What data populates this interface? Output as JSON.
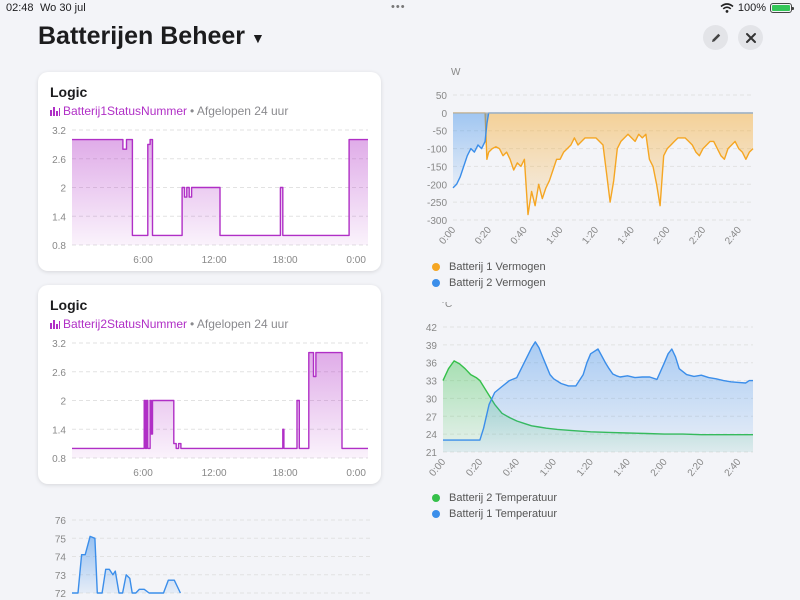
{
  "status_bar": {
    "time": "02:48",
    "date": "Wo 30 jul",
    "battery": "100%",
    "battery_level": 1.0
  },
  "header": {
    "title": "Batterijen Beheer",
    "edit_icon": "pencil-icon",
    "close_icon": "close-icon"
  },
  "colors": {
    "purple": "#b02fc6",
    "orange": "#f5a623",
    "blue": "#3b8eea",
    "green": "#35c04a"
  },
  "cards": [
    {
      "title": "Logic",
      "entity": "Batterij1StatusNummer",
      "period": "• Afgelopen 24 uur"
    },
    {
      "title": "Logic",
      "entity": "Batterij2StatusNummer",
      "period": "• Afgelopen 24 uur"
    }
  ],
  "chart_data": [
    {
      "type": "line",
      "title": "",
      "ylim": [
        0.8,
        3.2
      ],
      "y_ticks": [
        "3.2",
        "2.6",
        "2",
        "1.4",
        "0.8"
      ],
      "x_tick_labels": [
        "6:00",
        "12:00",
        "18:00",
        "0:00"
      ],
      "series": [
        {
          "x": [
            0,
            4.2,
            4.3,
            4.5,
            4.6,
            5.0,
            5.1,
            5.3,
            6.2,
            6.4,
            6.6,
            6.8,
            7.0,
            7.2,
            9.1,
            9.3,
            9.5,
            9.7,
            9.9,
            10.1,
            12.3,
            12.5,
            12.7,
            13.0,
            13.3,
            13.6,
            17.5,
            17.6,
            17.7,
            17.8,
            17.9,
            23.2,
            23.4,
            25
          ],
          "y": [
            3.0,
            3.0,
            2.8,
            2.8,
            3.0,
            3.0,
            1.0,
            1.0,
            1.0,
            2.9,
            3.0,
            1.0,
            1.0,
            1.0,
            1.0,
            2.0,
            1.8,
            2.0,
            1.8,
            2.0,
            2.0,
            1.0,
            1.0,
            1.0,
            1.0,
            1.0,
            1.0,
            2.0,
            2.0,
            1.0,
            1.0,
            1.0,
            3.0,
            3.0
          ]
        }
      ]
    },
    {
      "type": "line",
      "title": "",
      "ylim": [
        0.8,
        3.2
      ],
      "y_ticks": [
        "3.2",
        "2.6",
        "2",
        "1.4",
        "0.8"
      ],
      "x_tick_labels": [
        "6:00",
        "12:00",
        "18:00",
        "0:00"
      ],
      "series": [
        {
          "x": [
            0,
            6.0,
            6.1,
            6.2,
            6.3,
            6.4,
            6.6,
            6.7,
            6.8,
            6.9,
            7.0,
            7.1,
            8.4,
            8.6,
            8.8,
            9.0,
            9.2,
            17.7,
            17.8,
            17.9,
            18.0,
            18.1,
            18.9,
            19.0,
            19.2,
            20.0,
            20.4,
            20.6,
            22.6,
            22.8,
            25
          ],
          "y": [
            1.0,
            1.0,
            2.0,
            1.0,
            2.0,
            1.0,
            2.0,
            1.3,
            2.0,
            2.0,
            2.0,
            2.0,
            2.0,
            1.1,
            1.0,
            1.1,
            1.0,
            1.0,
            1.4,
            1.0,
            1.0,
            1.0,
            1.0,
            2.0,
            1.0,
            3.0,
            2.5,
            3.0,
            3.0,
            1.0,
            1.0
          ]
        }
      ]
    },
    {
      "type": "area",
      "title": "",
      "ylim": [
        72,
        76
      ],
      "y_ticks": [
        "76",
        "75",
        "74",
        "73",
        "72"
      ],
      "series": [
        {
          "x": [
            0,
            0.5,
            0.8,
            1.1,
            1.5,
            1.9,
            2.1,
            2.5,
            2.8,
            3.1,
            3.4,
            3.6,
            3.9,
            4.2,
            4.5,
            4.8,
            5.0,
            5.3,
            5.6,
            6.0,
            6.4,
            6.8,
            7.0,
            7.2,
            7.6,
            8.0,
            8.5,
            9.0
          ],
          "y": [
            72,
            72,
            74.1,
            74.1,
            75.1,
            75.0,
            72,
            72,
            73.3,
            73.3,
            73.0,
            73.2,
            72,
            72,
            73.0,
            72.8,
            72,
            72,
            72.2,
            72.2,
            72,
            72,
            72,
            72,
            72,
            72.7,
            72.7,
            72
          ]
        }
      ]
    },
    {
      "type": "area",
      "title": "",
      "ylabel": "W",
      "ylim": [
        -300,
        50
      ],
      "y_ticks": [
        "50",
        "0",
        "-50",
        "-100",
        "-150",
        "-200",
        "-250",
        "-300"
      ],
      "x_tick_labels": [
        "0:00",
        "0:20",
        "0:40",
        "1:00",
        "1:20",
        "1:40",
        "2:00",
        "2:20",
        "2:40"
      ],
      "series": [
        {
          "name": "Batterij 1 Vermogen",
          "x": [
            0,
            5,
            10,
            15,
            18,
            19,
            20,
            22,
            24,
            26,
            28,
            30,
            32,
            34,
            36,
            38,
            40,
            42,
            44,
            46,
            48,
            50,
            52,
            54,
            56,
            58,
            60,
            62,
            64,
            66,
            68,
            70,
            72,
            74,
            76,
            78,
            80,
            82,
            84,
            86,
            88,
            90,
            92,
            94,
            96,
            98,
            100,
            102,
            104,
            106,
            108,
            110,
            112,
            114,
            116,
            118,
            120,
            122,
            124,
            126,
            128,
            130,
            132,
            134,
            136,
            138,
            140,
            142,
            144,
            146,
            148,
            150,
            152,
            154,
            156,
            158,
            160,
            162,
            164,
            166,
            168
          ],
          "y": [
            0,
            0,
            0,
            0,
            0,
            -130,
            -110,
            -100,
            -95,
            -100,
            -120,
            -110,
            -130,
            -160,
            -140,
            -150,
            -130,
            -285,
            -220,
            -260,
            -200,
            -240,
            -210,
            -190,
            -160,
            -130,
            -130,
            -110,
            -100,
            -90,
            -70,
            -90,
            -80,
            -70,
            -70,
            -70,
            -70,
            -80,
            -90,
            -170,
            -250,
            -190,
            -100,
            -80,
            -70,
            -60,
            -70,
            -80,
            -60,
            -70,
            -60,
            -130,
            -150,
            -200,
            -260,
            -120,
            -100,
            -90,
            -80,
            -70,
            -70,
            -70,
            -80,
            -90,
            -110,
            -120,
            -100,
            -90,
            -80,
            -80,
            -100,
            -120,
            -130,
            -100,
            -90,
            -80,
            -100,
            -110,
            -130,
            -110,
            -100
          ]
        },
        {
          "name": "Batterij 2 Vermogen",
          "x": [
            0,
            2,
            4,
            6,
            8,
            10,
            12,
            14,
            16,
            18,
            19,
            20,
            21,
            168
          ],
          "y": [
            -210,
            -200,
            -180,
            -150,
            -120,
            -100,
            -110,
            -90,
            -100,
            -80,
            -30,
            0,
            0,
            0
          ]
        }
      ]
    },
    {
      "type": "area",
      "title": "",
      "ylabel": "°C",
      "ylim": [
        21,
        42
      ],
      "y_ticks": [
        "42",
        "39",
        "36",
        "33",
        "30",
        "27",
        "24",
        "21"
      ],
      "x_tick_labels": [
        "0:00",
        "0:20",
        "0:40",
        "1:00",
        "1:20",
        "1:40",
        "2:00",
        "2:20",
        "2:40"
      ],
      "series": [
        {
          "name": "Batterij 2 Temperatuur",
          "x": [
            0,
            3,
            6,
            9,
            12,
            15,
            18,
            20,
            24,
            28,
            32,
            36,
            40,
            44,
            48,
            52,
            56,
            62,
            70,
            80,
            90,
            100,
            110,
            120,
            130,
            140,
            150,
            160,
            168
          ],
          "y": [
            33,
            35,
            36.3,
            35.8,
            35,
            34,
            33.5,
            33,
            31,
            29,
            27.5,
            26.8,
            26.2,
            25.8,
            25.4,
            25.2,
            25,
            24.8,
            24.6,
            24.4,
            24.3,
            24.2,
            24.1,
            24.0,
            24.0,
            23.9,
            23.9,
            23.9,
            23.9
          ]
        },
        {
          "name": "Batterij 1 Temperatuur",
          "x": [
            0,
            10,
            20,
            22,
            25,
            28,
            32,
            36,
            40,
            44,
            48,
            50,
            52,
            54,
            56,
            58,
            60,
            64,
            68,
            72,
            76,
            78,
            80,
            84,
            88,
            90,
            92,
            94,
            96,
            100,
            104,
            108,
            112,
            116,
            120,
            122,
            124,
            126,
            128,
            132,
            136,
            140,
            144,
            148,
            152,
            156,
            160,
            164,
            166,
            168
          ],
          "y": [
            23,
            23,
            23,
            25,
            29,
            31,
            32,
            33,
            33.5,
            36,
            38.5,
            39.5,
            38.5,
            37,
            35.5,
            34,
            33.3,
            32.5,
            32.1,
            32.1,
            34,
            36,
            37.5,
            38.3,
            36,
            35,
            34.1,
            33.8,
            33.6,
            33.8,
            33.5,
            33.6,
            33.6,
            33.2,
            36,
            37.5,
            38.3,
            37,
            35,
            34,
            33.7,
            33.9,
            33.5,
            33.3,
            33.0,
            32.8,
            32.7,
            32.6,
            33.0,
            33.0
          ]
        }
      ]
    }
  ]
}
